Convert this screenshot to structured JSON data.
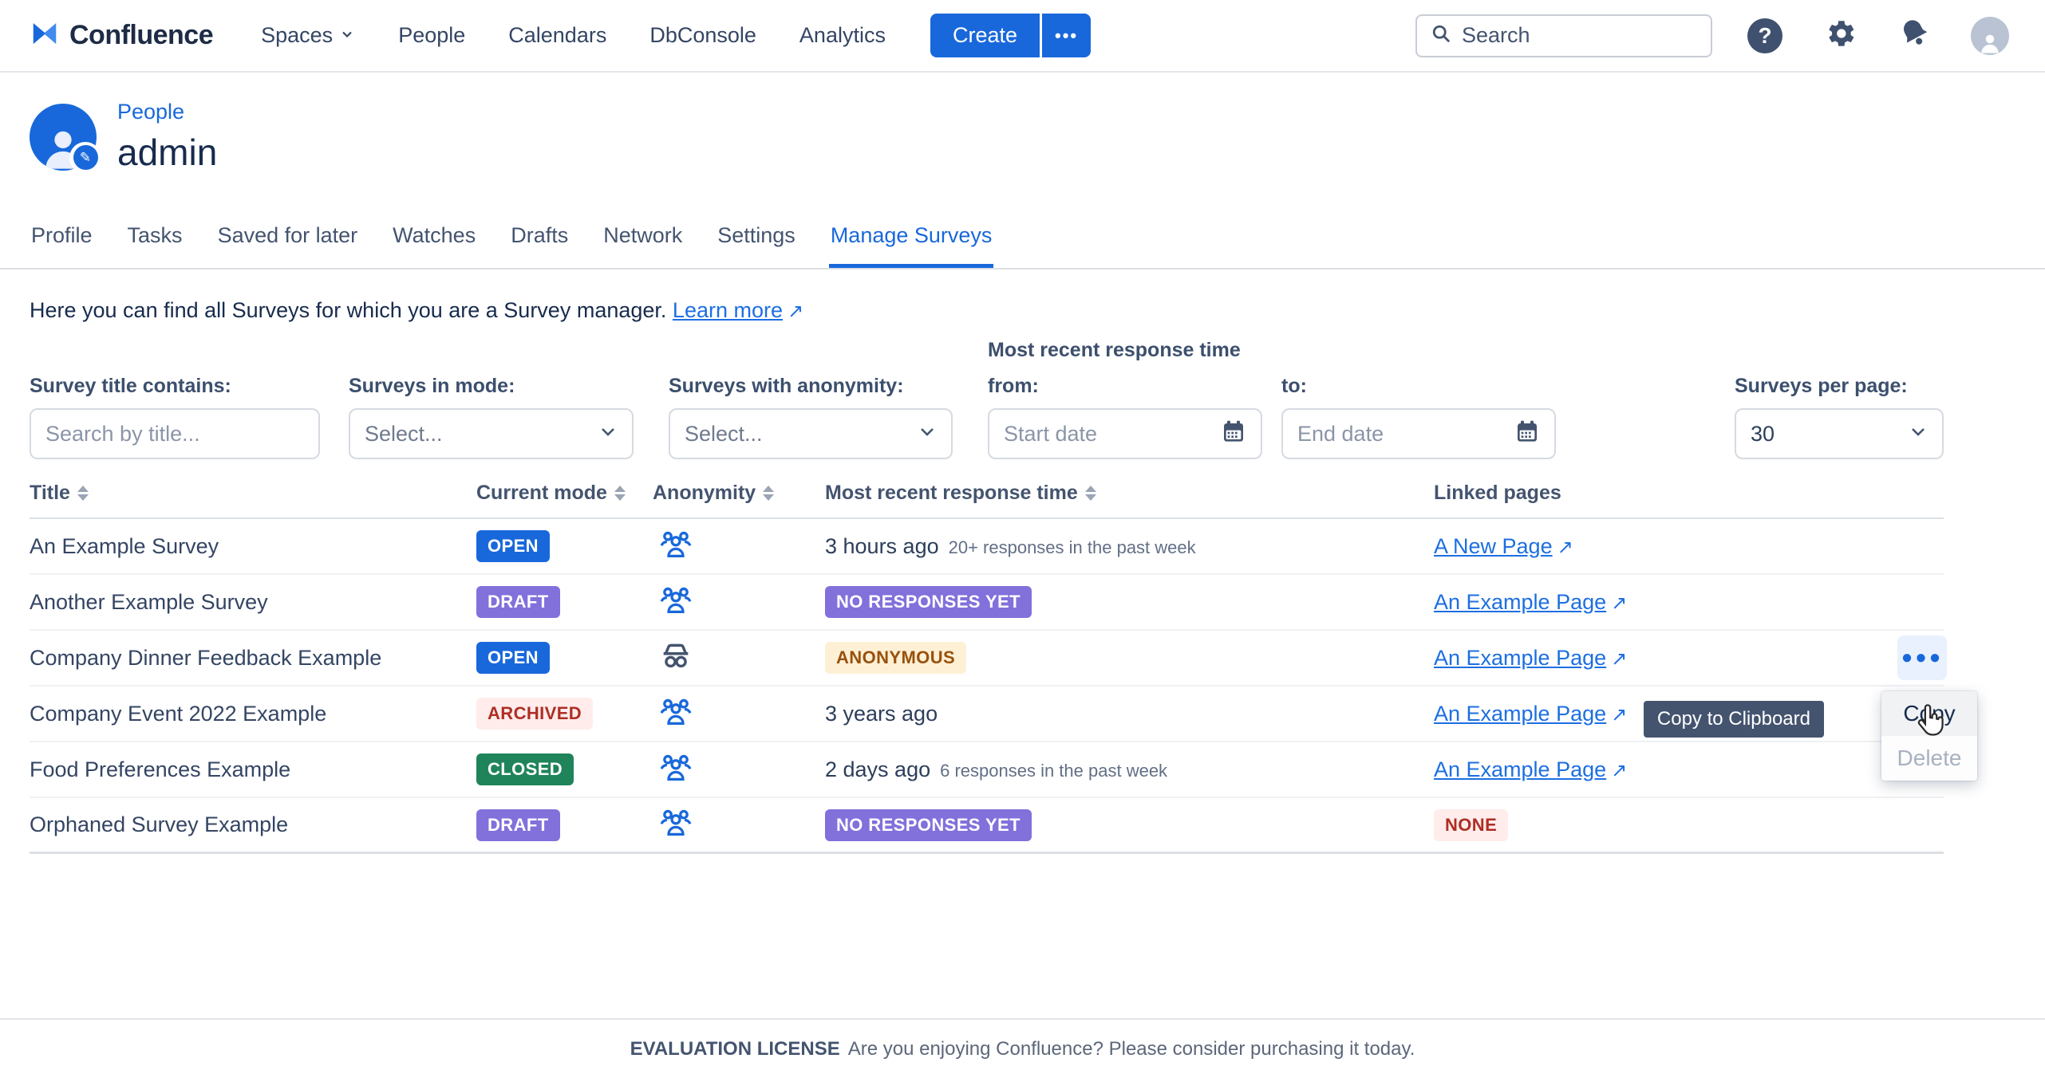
{
  "nav": {
    "brand": "Confluence",
    "items": [
      {
        "label": "Spaces",
        "chevron": true
      },
      {
        "label": "People"
      },
      {
        "label": "Calendars"
      },
      {
        "label": "DbConsole"
      },
      {
        "label": "Analytics"
      }
    ],
    "create_label": "Create",
    "more_label": "•••",
    "search_placeholder": "Search"
  },
  "profile": {
    "breadcrumb": "People",
    "title": "admin"
  },
  "tabs": {
    "items": [
      "Profile",
      "Tasks",
      "Saved for later",
      "Watches",
      "Drafts",
      "Network",
      "Settings",
      "Manage Surveys"
    ],
    "active": "Manage Surveys"
  },
  "intro": {
    "text": "Here you can find all Surveys for which you are a Survey manager.",
    "link_label": "Learn more"
  },
  "filters": {
    "title_label": "Survey title contains:",
    "title_placeholder": "Search by title...",
    "mode_label": "Surveys in mode:",
    "mode_value": "Select...",
    "anonymity_label": "Surveys with anonymity:",
    "anonymity_value": "Select...",
    "group_heading": "Most recent response time",
    "from_label": "from:",
    "from_placeholder": "Start date",
    "to_label": "to:",
    "to_placeholder": "End date",
    "per_page_label": "Surveys per page:",
    "per_page_value": "30"
  },
  "table": {
    "columns": [
      {
        "label": "Title",
        "sortable": true
      },
      {
        "label": "Current mode",
        "sortable": true
      },
      {
        "label": "Anonymity",
        "sortable": true
      },
      {
        "label": "Most recent response time",
        "sortable": true
      },
      {
        "label": "Linked pages",
        "sortable": false
      }
    ],
    "rows": [
      {
        "title": "An Example Survey",
        "mode": {
          "text": "OPEN",
          "bg": "#1868db",
          "fg": "#ffffff"
        },
        "anonymity": "group",
        "time": {
          "kind": "text",
          "text": "3 hours ago",
          "note": "20+ responses in the past week"
        },
        "link": {
          "kind": "link",
          "text": "A New Page"
        }
      },
      {
        "title": "Another Example Survey",
        "mode": {
          "text": "DRAFT",
          "bg": "#8270db",
          "fg": "#ffffff"
        },
        "anonymity": "group",
        "time": {
          "kind": "badge",
          "text": "NO RESPONSES YET",
          "bg": "#8270db",
          "fg": "#ffffff"
        },
        "link": {
          "kind": "link",
          "text": "An Example Page"
        }
      },
      {
        "title": "Company Dinner Feedback Example",
        "mode": {
          "text": "OPEN",
          "bg": "#1868db",
          "fg": "#ffffff"
        },
        "anonymity": "incognito",
        "time": {
          "kind": "badge",
          "text": "ANONYMOUS",
          "bg": "#fdf0d5",
          "fg": "#99510c"
        },
        "link": {
          "kind": "link",
          "text": "An Example Page"
        },
        "actions": true
      },
      {
        "title": "Company Event 2022 Example",
        "mode": {
          "text": "ARCHIVED",
          "bg": "#ffeceb",
          "fg": "#ae2e24"
        },
        "anonymity": "group",
        "time": {
          "kind": "text",
          "text": "3 years ago",
          "note": ""
        },
        "link": {
          "kind": "link",
          "text": "An Example Page"
        }
      },
      {
        "title": "Food Preferences Example",
        "mode": {
          "text": "CLOSED",
          "bg": "#1f845a",
          "fg": "#ffffff"
        },
        "anonymity": "group",
        "time": {
          "kind": "text",
          "text": "2 days ago",
          "note": "6 responses in the past week"
        },
        "link": {
          "kind": "link",
          "text": "An Example Page"
        }
      },
      {
        "title": "Orphaned Survey Example",
        "mode": {
          "text": "DRAFT",
          "bg": "#8270db",
          "fg": "#ffffff"
        },
        "anonymity": "group",
        "time": {
          "kind": "badge",
          "text": "NO RESPONSES YET",
          "bg": "#8270db",
          "fg": "#ffffff"
        },
        "link": {
          "kind": "badge",
          "text": "NONE",
          "bg": "#ffeceb",
          "fg": "#ae2e24"
        }
      }
    ]
  },
  "context_menu": {
    "tooltip": "Copy to Clipboard",
    "items": [
      {
        "label": "Copy",
        "enabled": true,
        "hovered": true
      },
      {
        "label": "Delete",
        "enabled": false
      }
    ]
  },
  "footer": {
    "strong": "EVALUATION LICENSE",
    "text": "Are you enjoying Confluence? Please consider purchasing it today."
  },
  "colors": {
    "accent": "#1868db",
    "link": "#1d6fe1",
    "badge_purple": "#8270db",
    "badge_green": "#1f845a"
  }
}
